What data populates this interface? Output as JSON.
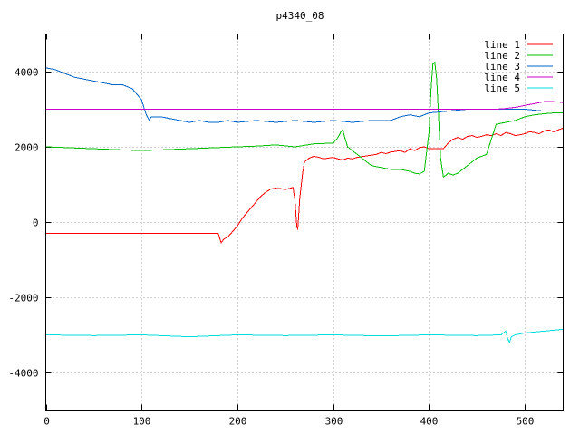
{
  "chart_data": {
    "type": "line",
    "title": "p4340_08",
    "xlabel": "",
    "ylabel": "",
    "xlim": [
      0,
      540
    ],
    "ylim": [
      -5000,
      5000
    ],
    "xticks": [
      0,
      100,
      200,
      300,
      400,
      500
    ],
    "yticks": [
      -4000,
      -2000,
      0,
      2000,
      4000
    ],
    "grid": true,
    "legend_position": "top-right",
    "series": [
      {
        "name": "line 1",
        "color": "#ff0000",
        "x": [
          0,
          50,
          100,
          150,
          180,
          183,
          186,
          190,
          195,
          200,
          205,
          210,
          215,
          220,
          225,
          230,
          235,
          240,
          245,
          250,
          255,
          258,
          260,
          262,
          263,
          265,
          268,
          270,
          275,
          280,
          285,
          290,
          295,
          300,
          305,
          310,
          315,
          320,
          325,
          330,
          335,
          340,
          345,
          350,
          355,
          360,
          365,
          370,
          375,
          380,
          385,
          390,
          395,
          400,
          405,
          410,
          415,
          420,
          425,
          430,
          435,
          440,
          445,
          450,
          455,
          460,
          465,
          470,
          475,
          480,
          485,
          490,
          495,
          500,
          505,
          510,
          515,
          520,
          525,
          530,
          535,
          540
        ],
        "y": [
          -300,
          -300,
          -300,
          -300,
          -300,
          -550,
          -450,
          -400,
          -250,
          -100,
          100,
          250,
          400,
          550,
          700,
          800,
          880,
          900,
          890,
          860,
          900,
          920,
          600,
          -100,
          -200,
          600,
          1300,
          1600,
          1700,
          1750,
          1720,
          1680,
          1700,
          1720,
          1680,
          1650,
          1700,
          1680,
          1720,
          1740,
          1760,
          1780,
          1800,
          1850,
          1820,
          1860,
          1880,
          1900,
          1850,
          1950,
          1900,
          1980,
          2000,
          1950,
          1950,
          1950,
          1950,
          2100,
          2200,
          2250,
          2200,
          2280,
          2300,
          2250,
          2280,
          2320,
          2300,
          2350,
          2300,
          2380,
          2350,
          2300,
          2320,
          2350,
          2400,
          2380,
          2350,
          2420,
          2450,
          2400,
          2450,
          2500
        ]
      },
      {
        "name": "line 2",
        "color": "#00c000",
        "x": [
          0,
          50,
          100,
          150,
          200,
          220,
          240,
          260,
          280,
          300,
          305,
          308,
          310,
          312,
          315,
          320,
          330,
          340,
          350,
          360,
          370,
          380,
          385,
          390,
          395,
          400,
          402,
          404,
          406,
          408,
          410,
          412,
          415,
          418,
          420,
          425,
          430,
          435,
          440,
          445,
          450,
          460,
          470,
          480,
          490,
          500,
          510,
          520,
          530,
          540
        ],
        "y": [
          2000,
          1950,
          1900,
          1950,
          2000,
          2020,
          2050,
          2000,
          2080,
          2100,
          2250,
          2400,
          2450,
          2250,
          2000,
          1900,
          1700,
          1500,
          1450,
          1400,
          1400,
          1350,
          1300,
          1280,
          1350,
          2400,
          3500,
          4200,
          4250,
          3800,
          2800,
          1700,
          1200,
          1250,
          1300,
          1250,
          1300,
          1400,
          1500,
          1600,
          1700,
          1800,
          2600,
          2650,
          2700,
          2800,
          2850,
          2880,
          2900,
          2900
        ]
      },
      {
        "name": "line 3",
        "color": "#0066cc",
        "x": [
          0,
          10,
          20,
          30,
          40,
          50,
          60,
          70,
          80,
          90,
          95,
          100,
          103,
          105,
          108,
          110,
          120,
          130,
          140,
          150,
          160,
          170,
          180,
          190,
          200,
          220,
          240,
          260,
          280,
          300,
          320,
          340,
          360,
          370,
          380,
          390,
          400,
          420,
          440,
          460,
          480,
          500,
          520,
          540
        ],
        "y": [
          4100,
          4050,
          3950,
          3850,
          3800,
          3750,
          3700,
          3650,
          3650,
          3550,
          3400,
          3250,
          3000,
          2850,
          2700,
          2800,
          2800,
          2750,
          2700,
          2650,
          2700,
          2650,
          2650,
          2700,
          2650,
          2700,
          2650,
          2700,
          2650,
          2700,
          2650,
          2700,
          2700,
          2800,
          2850,
          2800,
          2900,
          2950,
          3000,
          3000,
          3000,
          3000,
          2950,
          2950
        ]
      },
      {
        "name": "line 4",
        "color": "#cc00cc",
        "x": [
          0,
          460,
          470,
          480,
          490,
          500,
          510,
          520,
          530,
          540
        ],
        "y": [
          3000,
          3000,
          3000,
          3020,
          3050,
          3100,
          3150,
          3200,
          3200,
          3180
        ]
      },
      {
        "name": "line 5",
        "color": "#00dddd",
        "x": [
          0,
          50,
          100,
          150,
          200,
          250,
          300,
          350,
          400,
          450,
          475,
          480,
          482,
          484,
          486,
          490,
          500,
          520,
          540
        ],
        "y": [
          -3000,
          -3020,
          -3000,
          -3050,
          -3000,
          -3020,
          -3000,
          -3030,
          -3000,
          -3020,
          -3000,
          -2900,
          -3100,
          -3200,
          -3050,
          -3000,
          -2950,
          -2900,
          -2850
        ]
      }
    ]
  }
}
